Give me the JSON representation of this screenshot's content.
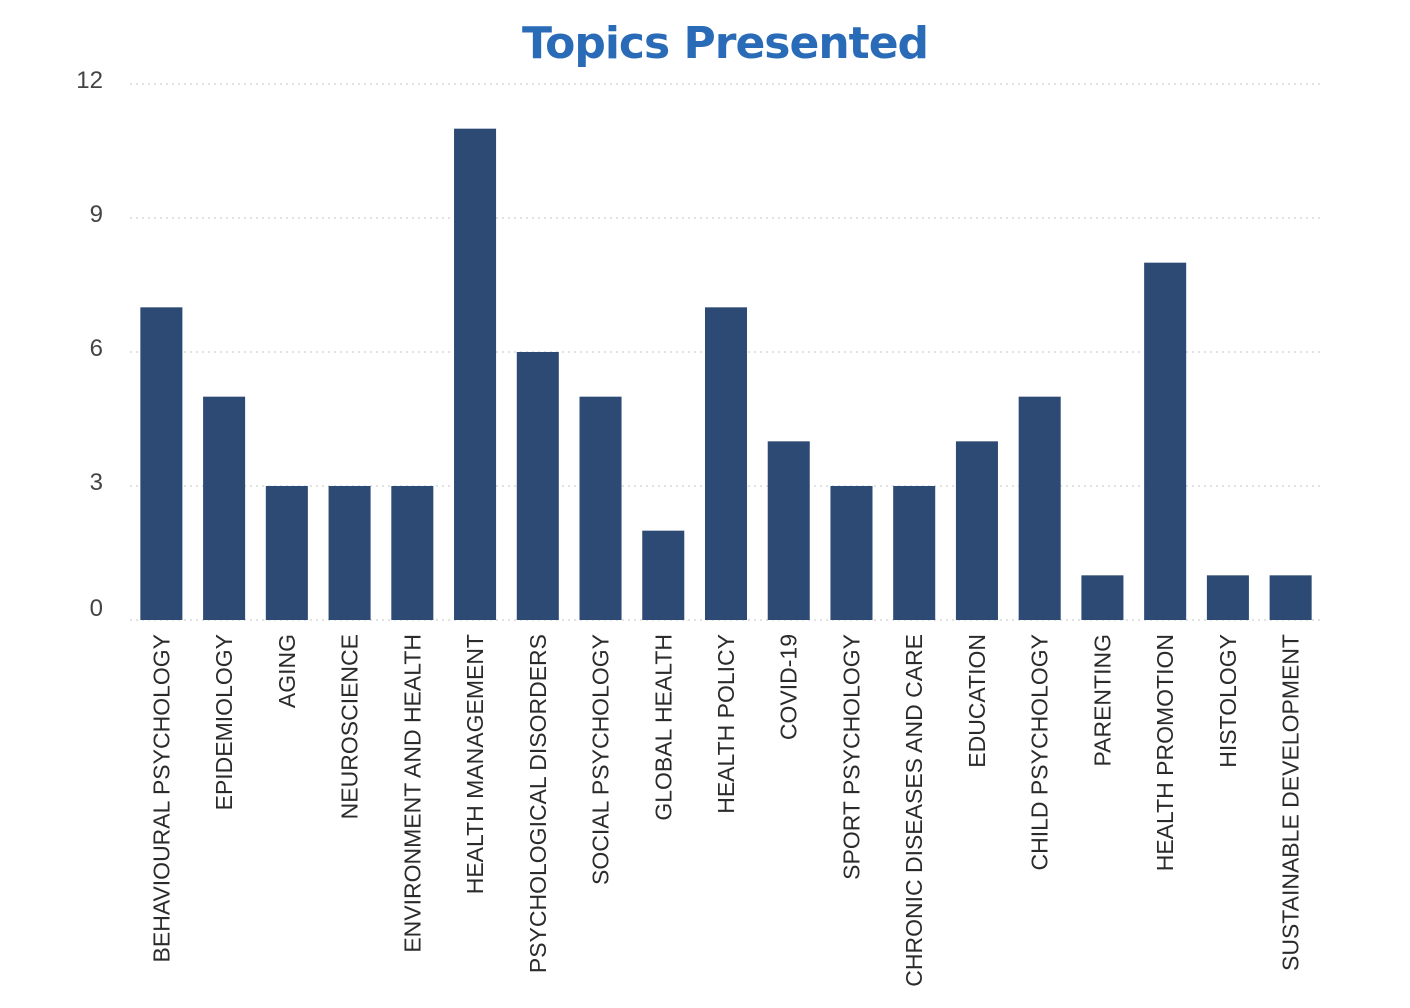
{
  "chart_data": {
    "type": "bar",
    "title": "Topics Presented",
    "xlabel": "",
    "ylabel": "",
    "ylim": [
      0,
      12
    ],
    "yticks": [
      0,
      3,
      6,
      9,
      12
    ],
    "grid": true,
    "bar_color": "#2c4a74",
    "title_color": "#2a6bb8",
    "categories": [
      "BEHAVIOURAL PSYCHOLOGY",
      "EPIDEMIOLOGY",
      "AGING",
      "NEUROSCIENCE",
      "ENVIRONMENT AND HEALTH",
      "HEALTH MANAGEMENT",
      "PSYCHOLOGICAL DISORDERS",
      "SOCIAL PSYCHOLOGY",
      "GLOBAL HEALTH",
      "HEALTH POLICY",
      "COVID-19",
      "SPORT PSYCHOLOGY",
      "CHRONIC DISEASES AND CARE",
      "EDUCATION",
      "CHILD PSYCHOLOGY",
      "PARENTING",
      "HEALTH PROMOTION",
      "HISTOLOGY",
      "SUSTAINABLE DEVELOPMENT"
    ],
    "values": [
      7,
      5,
      3,
      3,
      3,
      11,
      6,
      5,
      2,
      7,
      4,
      3,
      3,
      4,
      5,
      1,
      8,
      1,
      1
    ]
  }
}
